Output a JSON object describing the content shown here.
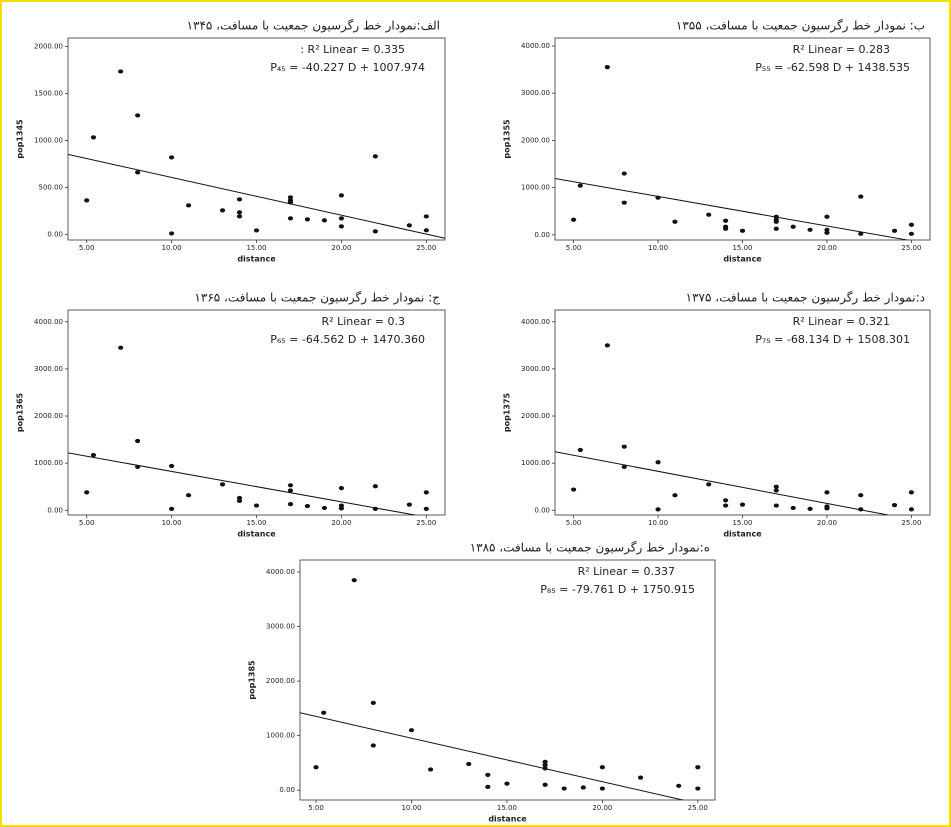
{
  "chart_data": [
    {
      "type": "scatter",
      "title": "الف:نمودار خط رگرسیون جمعیت با مسافت، ۱۳۴۵",
      "x_label": "distance",
      "y_label": "pop1345",
      "r2_label": ": R² Linear = 0.335",
      "equation": "P₄₅ = -40.227 D + 1007.974",
      "fit_line": {
        "slope": -40.227,
        "intercept": 1007.974
      },
      "xlim": [
        3.9,
        26.1
      ],
      "ylim": [
        -60,
        2090
      ],
      "xticks": [
        {
          "value": 5,
          "label": "5.00"
        },
        {
          "value": 10,
          "label": "10.00"
        },
        {
          "value": 15,
          "label": "15.00"
        },
        {
          "value": 20,
          "label": "20.00"
        },
        {
          "value": 25,
          "label": "25.00"
        }
      ],
      "yticks": [
        {
          "value": 0,
          "label": "0.00"
        },
        {
          "value": 500,
          "label": "500.00"
        },
        {
          "value": 1000,
          "label": "1000.00"
        },
        {
          "value": 1500,
          "label": "1500.00"
        },
        {
          "value": 2000,
          "label": "2000.00"
        }
      ],
      "color": "#111",
      "x": [
        5,
        5.4,
        7,
        8,
        8,
        10,
        10,
        11,
        13,
        14,
        14,
        14,
        15,
        17,
        17,
        17,
        17,
        18,
        19,
        20,
        20,
        20,
        22,
        22,
        24,
        25,
        25
      ],
      "values": [
        362,
        1032,
        1734,
        1266,
        660,
        819,
        10,
        309,
        255,
        372,
        234,
        191,
        42,
        394,
        362,
        340,
        170,
        160,
        149,
        415,
        170,
        85,
        830,
        32,
        96,
        191,
        43
      ]
    },
    {
      "type": "scatter",
      "title": "ب: نمودار خط رگرسیون جمعیت با مسافت، ۱۳۵۵",
      "x_label": "distance",
      "y_label": "pop1355",
      "r2_label": "R² Linear = 0.283",
      "equation": "P₅₅ = -62.598 D + 1438.535",
      "fit_line": {
        "slope": -62.598,
        "intercept": 1438.535
      },
      "xlim": [
        3.9,
        26.1
      ],
      "ylim": [
        -110,
        4170
      ],
      "xticks": [
        {
          "value": 5,
          "label": "5.00"
        },
        {
          "value": 10,
          "label": "10.00"
        },
        {
          "value": 15,
          "label": "15.00"
        },
        {
          "value": 20,
          "label": "20.00"
        },
        {
          "value": 25,
          "label": "25.00"
        }
      ],
      "yticks": [
        {
          "value": 0,
          "label": "0.00"
        },
        {
          "value": 1000,
          "label": "1000.00"
        },
        {
          "value": 2000,
          "label": "2000.00"
        },
        {
          "value": 3000,
          "label": "3000.00"
        },
        {
          "value": 4000,
          "label": "4000.00"
        }
      ],
      "color": "#111",
      "x": [
        5,
        5.4,
        7,
        8,
        8,
        10,
        11,
        13,
        14,
        14,
        14,
        15,
        17,
        17,
        17,
        17,
        18,
        19,
        20,
        20,
        20,
        22,
        22,
        24,
        25,
        25
      ],
      "values": [
        319,
        1043,
        3553,
        1298,
        681,
        787,
        277,
        426,
        298,
        170,
        128,
        85,
        383,
        319,
        277,
        128,
        170,
        106,
        383,
        106,
        43,
        809,
        21,
        85,
        213,
        21
      ]
    },
    {
      "type": "scatter",
      "title": "ج: نمودار خط رگرسیون جمعیت با مسافت، ۱۳۶۵",
      "x_label": "distance",
      "y_label": "pop1365",
      "r2_label": "R² Linear = 0.3",
      "equation": "P₆₅ = -64.562 D + 1470.360",
      "fit_line": {
        "slope": -64.562,
        "intercept": 1470.36
      },
      "xlim": [
        3.9,
        26.1
      ],
      "ylim": [
        -100,
        4250
      ],
      "xticks": [
        {
          "value": 5,
          "label": "5.00"
        },
        {
          "value": 10,
          "label": "10.00"
        },
        {
          "value": 15,
          "label": "15.00"
        },
        {
          "value": 20,
          "label": "20.00"
        },
        {
          "value": 25,
          "label": "25.00"
        }
      ],
      "yticks": [
        {
          "value": 0,
          "label": "0.00"
        },
        {
          "value": 1000,
          "label": "1000.00"
        },
        {
          "value": 2000,
          "label": "2000.00"
        },
        {
          "value": 3000,
          "label": "3000.00"
        },
        {
          "value": 4000,
          "label": "4000.00"
        }
      ],
      "color": "#111",
      "x": [
        5,
        5.4,
        7,
        8,
        8,
        10,
        10,
        11,
        13,
        14,
        14,
        15,
        17,
        17,
        17,
        18,
        19,
        20,
        20,
        20,
        22,
        22,
        24,
        25,
        25
      ],
      "values": [
        380,
        1170,
        3450,
        1470,
        920,
        940,
        30,
        320,
        550,
        260,
        200,
        100,
        530,
        420,
        130,
        90,
        50,
        470,
        100,
        40,
        510,
        30,
        120,
        380,
        30
      ]
    },
    {
      "type": "scatter",
      "title": "د:نمودار خط رگرسیون جمعیت با مسافت، ۱۳۷۵",
      "x_label": "distance",
      "y_label": "pop1375",
      "r2_label": "R² Linear = 0.321",
      "equation": "P₇₅ = -68.134 D + 1508.301",
      "fit_line": {
        "slope": -68.134,
        "intercept": 1508.301
      },
      "xlim": [
        3.9,
        26.1
      ],
      "ylim": [
        -100,
        4250
      ],
      "xticks": [
        {
          "value": 5,
          "label": "5.00"
        },
        {
          "value": 10,
          "label": "10.00"
        },
        {
          "value": 15,
          "label": "15.00"
        },
        {
          "value": 20,
          "label": "20.00"
        },
        {
          "value": 25,
          "label": "25.00"
        }
      ],
      "yticks": [
        {
          "value": 0,
          "label": "0.00"
        },
        {
          "value": 1000,
          "label": "1000.00"
        },
        {
          "value": 2000,
          "label": "2000.00"
        },
        {
          "value": 3000,
          "label": "3000.00"
        },
        {
          "value": 4000,
          "label": "4000.00"
        }
      ],
      "color": "#111",
      "x": [
        5,
        5.4,
        7,
        8,
        8,
        10,
        10,
        11,
        13,
        14,
        14,
        15,
        17,
        17,
        17,
        18,
        19,
        20,
        20,
        20,
        22,
        22,
        24,
        25,
        25
      ],
      "values": [
        440,
        1280,
        3500,
        1350,
        920,
        1020,
        20,
        320,
        550,
        210,
        100,
        120,
        500,
        420,
        100,
        50,
        30,
        380,
        80,
        40,
        320,
        20,
        110,
        380,
        20
      ]
    },
    {
      "type": "scatter",
      "title": "ه:نمودار خط رگرسیون جمعیت با مسافت، ۱۳۸۵",
      "x_label": "distance",
      "y_label": "pop1385",
      "r2_label": "R² Linear = 0.337",
      "equation": "P₈₅ = -79.761 D + 1750.915",
      "fit_line": {
        "slope": -79.761,
        "intercept": 1750.915
      },
      "xlim": [
        4.16,
        25.9
      ],
      "ylim": [
        -180,
        4220
      ],
      "xticks": [
        {
          "value": 5,
          "label": "5.00"
        },
        {
          "value": 10,
          "label": "10.00"
        },
        {
          "value": 15,
          "label": "15.00"
        },
        {
          "value": 20,
          "label": "20.00"
        },
        {
          "value": 25,
          "label": "25.00"
        }
      ],
      "yticks": [
        {
          "value": 0,
          "label": "0.00"
        },
        {
          "value": 1000,
          "label": "1000.00"
        },
        {
          "value": 2000,
          "label": "2000.00"
        },
        {
          "value": 3000,
          "label": "3000.00"
        },
        {
          "value": 4000,
          "label": "4000.00"
        }
      ],
      "color": "#111",
      "x": [
        5,
        5.4,
        7,
        8,
        8,
        10,
        11,
        13,
        14,
        14,
        15,
        17,
        17,
        17,
        17,
        18,
        19,
        20,
        20,
        22,
        24,
        25,
        25
      ],
      "values": [
        420,
        1420,
        3850,
        1600,
        820,
        1100,
        380,
        480,
        280,
        60,
        120,
        520,
        460,
        400,
        100,
        30,
        50,
        420,
        30,
        230,
        80,
        420,
        30
      ]
    }
  ]
}
